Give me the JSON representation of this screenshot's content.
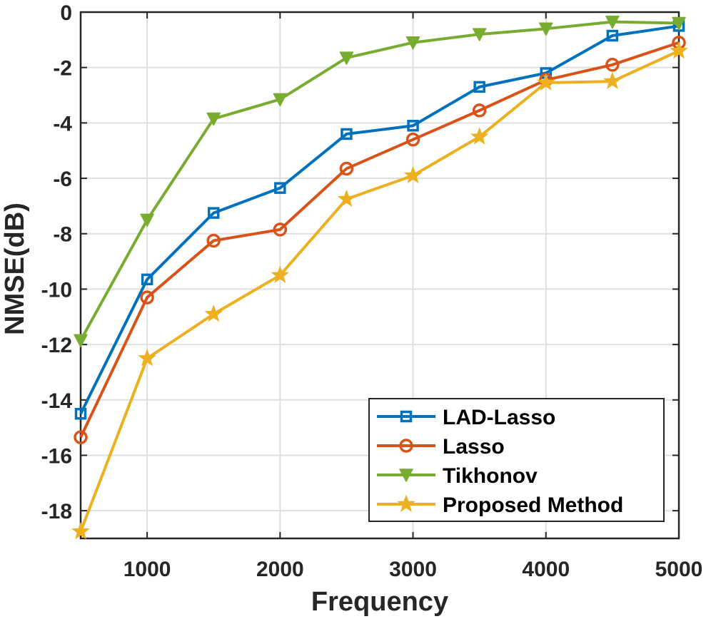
{
  "chart_data": {
    "type": "line",
    "title": "",
    "xlabel": "Frequency",
    "ylabel": "NMSE(dB)",
    "xlim": [
      500,
      5000
    ],
    "ylim": [
      -19,
      0
    ],
    "xticks": [
      1000,
      2000,
      3000,
      4000,
      5000
    ],
    "yticks": [
      0,
      -2,
      -4,
      -6,
      -8,
      -10,
      -12,
      -14,
      -16,
      -18
    ],
    "grid": true,
    "legend_position": "bottom-right",
    "x": [
      500,
      1000,
      1500,
      2000,
      2500,
      3000,
      3500,
      4000,
      4500,
      5000
    ],
    "series": [
      {
        "name": "LAD-Lasso",
        "color": "#0072BD",
        "marker": "square",
        "values": [
          -14.5,
          -9.65,
          -7.25,
          -6.35,
          -4.4,
          -4.1,
          -2.7,
          -2.2,
          -0.85,
          -0.5
        ]
      },
      {
        "name": "Lasso",
        "color": "#D95319",
        "marker": "circle",
        "values": [
          -15.35,
          -10.3,
          -8.25,
          -7.85,
          -5.65,
          -4.6,
          -3.55,
          -2.45,
          -1.9,
          -1.1
        ]
      },
      {
        "name": "Tikhonov",
        "color": "#77AC30",
        "marker": "triangle-down",
        "values": [
          -11.85,
          -7.5,
          -3.85,
          -3.15,
          -1.65,
          -1.1,
          -0.8,
          -0.6,
          -0.35,
          -0.4
        ]
      },
      {
        "name": "Proposed Method",
        "color": "#EDB120",
        "marker": "star",
        "values": [
          -18.75,
          -12.5,
          -10.9,
          -9.5,
          -6.75,
          -5.9,
          -4.5,
          -2.55,
          -2.5,
          -1.4
        ]
      }
    ]
  }
}
